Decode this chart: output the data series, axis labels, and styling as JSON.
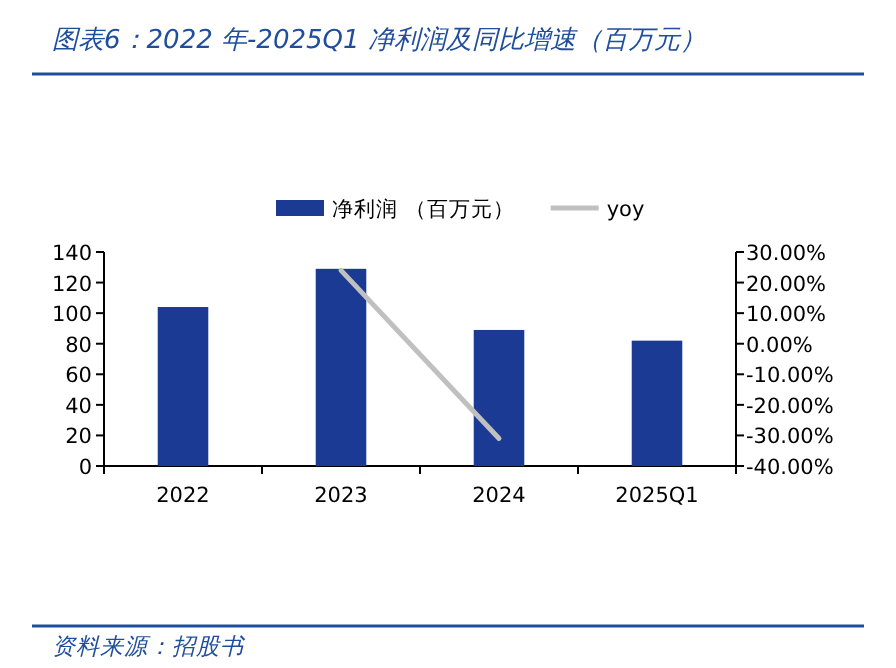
{
  "chart_data": {
    "type": "bar",
    "title": "图表6：2022 年-2025Q1 净利润及同比增速（百万元）",
    "annotations": [
      "资料来源：招股书"
    ],
    "categories": [
      "2022",
      "2023",
      "2024",
      "2025Q1"
    ],
    "series": [
      {
        "name": "净利润 （百万元）",
        "color": "#1a3a93",
        "values": [
          104,
          129,
          89,
          82
        ]
      },
      {
        "name": "yoy",
        "type": "line",
        "axis": "y2",
        "color": "#c0c0c0",
        "values": [
          null,
          24,
          -31,
          null
        ]
      }
    ],
    "ylim": [
      0,
      140
    ],
    "yticks": [
      0,
      20,
      40,
      60,
      80,
      100,
      120,
      140
    ],
    "y2lim": [
      -40,
      30
    ],
    "y2ticks": [
      {
        "value": 30,
        "label": "30.00%"
      },
      {
        "value": 20,
        "label": "20.00%"
      },
      {
        "value": 10,
        "label": "10.00%"
      },
      {
        "value": 0,
        "label": "0.00%"
      },
      {
        "value": -10,
        "label": "-10.00%"
      },
      {
        "value": -20,
        "label": "-20.00%"
      },
      {
        "value": -30,
        "label": "-30.00%"
      },
      {
        "value": -40,
        "label": "-40.00%"
      }
    ],
    "legend": "top"
  }
}
